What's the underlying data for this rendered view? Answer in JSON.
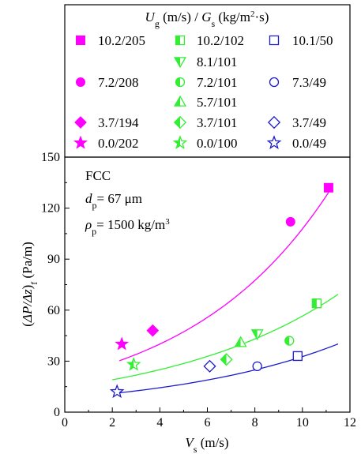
{
  "chart_data": {
    "type": "scatter",
    "legend_title": "U_g (m/s) / G_s (kg/m²·s)",
    "legend_placement": "top",
    "annotations": [
      "FCC",
      "d_p= 67 μm",
      "ρ_p= 1500 kg/m³"
    ],
    "xlabel": "V_s (m/s)",
    "ylabel": "(ΔP/Δz)_f  (Pa/m)",
    "xlim": [
      0,
      12
    ],
    "ylim": [
      0,
      150
    ],
    "xticks": [
      0,
      2,
      4,
      6,
      8,
      10,
      12
    ],
    "yticks": [
      0,
      30,
      60,
      90,
      120,
      150
    ],
    "grid": false,
    "colors": {
      "magenta": "#ff00ff",
      "green": "#33ee33",
      "blue": "#1c1ccc"
    },
    "series": [
      {
        "name": "10.2/205",
        "marker": "square-filled",
        "color": "#ff00ff",
        "points": [
          [
            11.1,
            132
          ]
        ]
      },
      {
        "name": "10.2/102",
        "marker": "square-half",
        "color": "#33ee33",
        "points": [
          [
            10.6,
            64
          ]
        ]
      },
      {
        "name": "10.1/50",
        "marker": "square-open",
        "color": "#1c1ccc",
        "points": [
          [
            9.8,
            33
          ]
        ]
      },
      {
        "name": "8.1/101",
        "marker": "triangle-down-half",
        "color": "#33ee33",
        "points": [
          [
            8.1,
            46
          ]
        ]
      },
      {
        "name": "7.2/208",
        "marker": "circle-filled",
        "color": "#ff00ff",
        "points": [
          [
            9.5,
            112
          ]
        ]
      },
      {
        "name": "7.2/101",
        "marker": "circle-half",
        "color": "#33ee33",
        "points": [
          [
            9.45,
            42
          ]
        ]
      },
      {
        "name": "7.3/49",
        "marker": "circle-open",
        "color": "#1c1ccc",
        "points": [
          [
            8.1,
            27
          ]
        ]
      },
      {
        "name": "5.7/101",
        "marker": "triangle-up-half",
        "color": "#33ee33",
        "points": [
          [
            7.4,
            41
          ]
        ]
      },
      {
        "name": "3.7/194",
        "marker": "diamond-filled",
        "color": "#ff00ff",
        "points": [
          [
            3.7,
            48
          ]
        ]
      },
      {
        "name": "3.7/101",
        "marker": "diamond-half",
        "color": "#33ee33",
        "points": [
          [
            6.8,
            31
          ]
        ]
      },
      {
        "name": "3.7/49",
        "marker": "diamond-open",
        "color": "#1c1ccc",
        "points": [
          [
            6.1,
            27
          ]
        ]
      },
      {
        "name": "0.0/202",
        "marker": "star-filled",
        "color": "#ff00ff",
        "points": [
          [
            2.4,
            40
          ]
        ]
      },
      {
        "name": "0.0/100",
        "marker": "star-half",
        "color": "#33ee33",
        "points": [
          [
            2.9,
            28
          ]
        ]
      },
      {
        "name": "0.0/49",
        "marker": "star-open",
        "color": "#1c1ccc",
        "points": [
          [
            2.2,
            12
          ]
        ]
      }
    ],
    "fit_curves": [
      {
        "color": "#ff00ff",
        "x_range": [
          2.3,
          11.1
        ],
        "a": 20.7,
        "b": 0.165
      },
      {
        "color": "#33ee33",
        "x_range": [
          2.0,
          11.5
        ],
        "a": 14.5,
        "b": 0.136
      },
      {
        "color": "#1c1ccc",
        "x_range": [
          2.2,
          11.5
        ],
        "a": 8.3,
        "b": 0.137
      }
    ],
    "legend_layout": [
      [
        "10.2/205",
        "10.2/102",
        "10.1/50"
      ],
      [
        null,
        "8.1/101",
        null
      ],
      [
        "7.2/208",
        "7.2/101",
        "7.3/49"
      ],
      [
        null,
        "5.7/101",
        null
      ],
      [
        "3.7/194",
        "3.7/101",
        "3.7/49"
      ],
      [
        "0.0/202",
        "0.0/100",
        "0.0/49"
      ]
    ]
  }
}
